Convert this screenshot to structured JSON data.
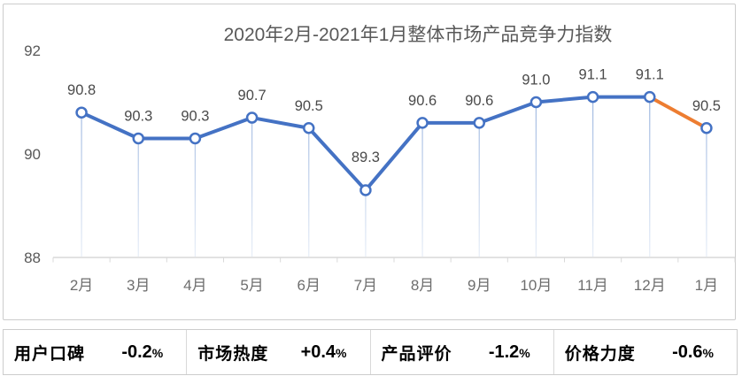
{
  "chart_data": {
    "type": "line",
    "title": "2020年2月-2021年1月整体市场产品竞争力指数",
    "categories": [
      "2月",
      "3月",
      "4月",
      "5月",
      "6月",
      "7月",
      "8月",
      "9月",
      "10月",
      "11月",
      "12月",
      "1月"
    ],
    "values": [
      90.8,
      90.3,
      90.3,
      90.7,
      90.5,
      89.3,
      90.6,
      90.6,
      91.0,
      91.1,
      91.1,
      90.5
    ],
    "value_labels": [
      "90.8",
      "90.3",
      "90.3",
      "90.7",
      "90.5",
      "89.3",
      "90.6",
      "90.6",
      "91.0",
      "91.1",
      "91.1",
      "90.5"
    ],
    "ylim": [
      88,
      92
    ],
    "yticks": [
      92,
      90,
      88
    ],
    "grid": false,
    "legend": "none",
    "line_color": "#4472C4",
    "highlight_segment_index": 10,
    "highlight_segment_color": "#ED7D31",
    "marker_fill": "#FFFFFF",
    "marker_stroke": "#4472C4",
    "dropline_color_top": "#9FB8E0",
    "dropline_color_bottom": "#E9EFF8",
    "axis_color": "#D9D9D9",
    "title_color": "#595959",
    "tick_label_color": "#595959",
    "x_label_color": "#6E6E6E",
    "data_label_color": "#4A4A4A"
  },
  "stats": {
    "items": [
      {
        "label": "用户口碑",
        "value": "-0.2",
        "unit": "%"
      },
      {
        "label": "市场热度",
        "value": "+0.4",
        "unit": "%"
      },
      {
        "label": "产品评价",
        "value": "-1.2",
        "unit": "%"
      },
      {
        "label": "价格力度",
        "value": "-0.6",
        "unit": "%"
      }
    ]
  }
}
